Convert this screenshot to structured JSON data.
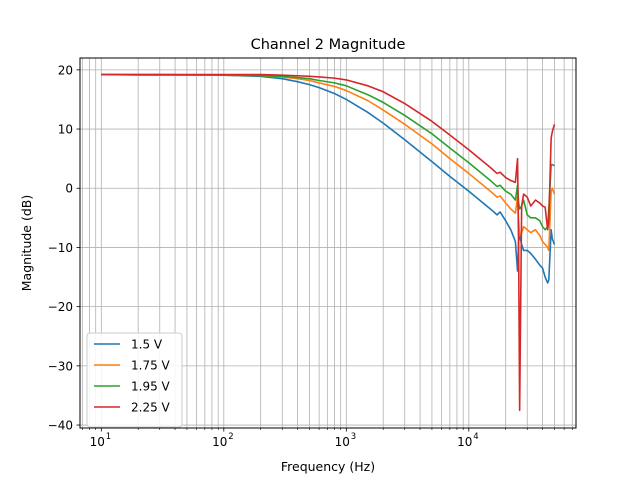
{
  "chart_data": {
    "type": "line",
    "title": "Channel 2 Magnitude",
    "xlabel": "Frequency (Hz)",
    "ylabel": "Magnitude (dB)",
    "xscale": "log",
    "xlim": [
      6.7,
      75000
    ],
    "ylim": [
      -40.5,
      22
    ],
    "grid": true,
    "legend_position": "lower-left",
    "x_ticks": [
      {
        "value": 10,
        "label": "10",
        "exp": "1"
      },
      {
        "value": 100,
        "label": "10",
        "exp": "2"
      },
      {
        "value": 1000,
        "label": "10",
        "exp": "3"
      },
      {
        "value": 10000,
        "label": "10",
        "exp": "4"
      }
    ],
    "y_ticks": [
      {
        "value": 20,
        "label": "20"
      },
      {
        "value": 10,
        "label": "10"
      },
      {
        "value": 0,
        "label": "0"
      },
      {
        "value": -10,
        "label": "−10"
      },
      {
        "value": -20,
        "label": "−20"
      },
      {
        "value": -30,
        "label": "−30"
      },
      {
        "value": -40,
        "label": "−40"
      }
    ],
    "series": [
      {
        "name": "1.5 V",
        "color": "#1f77b4",
        "x": [
          10,
          30,
          100,
          200,
          300,
          400,
          500,
          600,
          800,
          1000,
          1500,
          2000,
          3000,
          5000,
          7000,
          10000,
          15000,
          17000,
          18000,
          20000,
          22000,
          24000,
          25000,
          25500,
          26000,
          27000,
          28000,
          30000,
          32000,
          35000,
          38000,
          40000,
          42000,
          44000,
          45000,
          47000,
          48000,
          50000
        ],
        "y": [
          19.2,
          19.1,
          19.1,
          18.9,
          18.5,
          18.0,
          17.5,
          17.0,
          16.0,
          15.0,
          12.8,
          11.0,
          8.2,
          4.5,
          2.0,
          -0.5,
          -3.5,
          -4.5,
          -4.0,
          -5.5,
          -7.0,
          -9.0,
          -14.0,
          -9.0,
          -8.0,
          -9.5,
          -10.5,
          -10.5,
          -11.0,
          -12.0,
          -13.0,
          -13.5,
          -15.0,
          -16.0,
          -15.5,
          -7.0,
          -8.5,
          -9.5
        ]
      },
      {
        "name": "1.75 V",
        "color": "#ff7f0e",
        "x": [
          10,
          30,
          100,
          200,
          300,
          400,
          500,
          600,
          800,
          1000,
          1500,
          2000,
          3000,
          5000,
          7000,
          10000,
          15000,
          17000,
          18000,
          20000,
          22000,
          24000,
          25000,
          25500,
          26000,
          27000,
          28000,
          30000,
          32000,
          35000,
          38000,
          40000,
          42000,
          44000,
          45000,
          47000,
          48000,
          50000
        ],
        "y": [
          19.2,
          19.1,
          19.1,
          19.0,
          18.8,
          18.5,
          18.2,
          17.8,
          17.2,
          16.5,
          14.8,
          13.2,
          10.8,
          7.5,
          5.0,
          2.5,
          -0.5,
          -1.5,
          -1.3,
          -2.5,
          -3.5,
          -4.2,
          -1.5,
          -5.5,
          -8.0,
          -7.5,
          -6.5,
          -7.0,
          -7.5,
          -7.0,
          -8.0,
          -9.0,
          -9.5,
          -10.0,
          -10.5,
          -0.5,
          0.0,
          -1.0
        ]
      },
      {
        "name": "1.95 V",
        "color": "#2ca02c",
        "x": [
          10,
          30,
          100,
          200,
          300,
          400,
          500,
          600,
          800,
          1000,
          1500,
          2000,
          3000,
          5000,
          7000,
          10000,
          15000,
          17000,
          18000,
          20000,
          22000,
          24000,
          25000,
          25500,
          26000,
          27000,
          28000,
          30000,
          32000,
          35000,
          38000,
          40000,
          42000,
          44000,
          45000,
          47000,
          48000,
          50000
        ],
        "y": [
          19.2,
          19.2,
          19.1,
          19.0,
          18.9,
          18.7,
          18.5,
          18.2,
          17.8,
          17.3,
          15.8,
          14.5,
          12.3,
          9.2,
          6.8,
          4.3,
          1.3,
          0.3,
          0.5,
          -0.5,
          -1.0,
          -2.0,
          0.5,
          -2.5,
          -3.5,
          -3.0,
          -2.0,
          -4.5,
          -5.0,
          -5.0,
          -5.5,
          -6.5,
          -7.0,
          -6.5,
          -3.5,
          4.0,
          4.0,
          3.8
        ]
      },
      {
        "name": "2.25 V",
        "color": "#d62728",
        "x": [
          10,
          30,
          100,
          200,
          300,
          400,
          500,
          600,
          800,
          1000,
          1500,
          2000,
          3000,
          5000,
          7000,
          10000,
          15000,
          17000,
          18000,
          20000,
          22000,
          24000,
          25000,
          25500,
          26000,
          26500,
          27000,
          28000,
          30000,
          32000,
          35000,
          38000,
          40000,
          42000,
          44000,
          45000,
          47000,
          48000,
          50000
        ],
        "y": [
          19.2,
          19.2,
          19.2,
          19.2,
          19.1,
          19.0,
          18.9,
          18.8,
          18.6,
          18.3,
          17.3,
          16.3,
          14.3,
          11.3,
          9.0,
          6.5,
          3.5,
          2.5,
          2.7,
          1.8,
          1.3,
          1.0,
          5.0,
          -10.0,
          -37.5,
          -20.0,
          -3.0,
          -1.0,
          -1.5,
          -3.0,
          -2.0,
          -2.5,
          -3.0,
          -3.2,
          -7.0,
          -5.5,
          8.5,
          9.5,
          10.8
        ]
      }
    ]
  }
}
